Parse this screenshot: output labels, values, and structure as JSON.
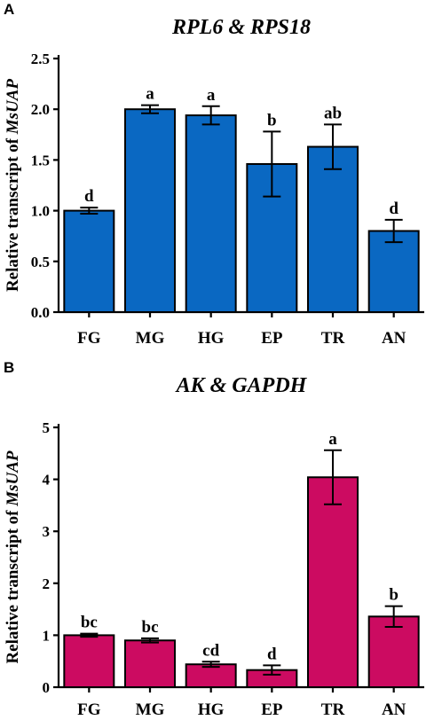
{
  "chart_data": [
    {
      "type": "bar",
      "panel": "A",
      "title": "RPL6 & RPS18",
      "ylabel_prefix": "Relative transcript of ",
      "ylabel_gene": "MsUAP",
      "categories": [
        "FG",
        "MG",
        "HG",
        "EP",
        "TR",
        "AN"
      ],
      "values": [
        1.0,
        2.0,
        1.94,
        1.46,
        1.63,
        0.8
      ],
      "errors": [
        0.03,
        0.04,
        0.09,
        0.32,
        0.22,
        0.11
      ],
      "significance": [
        "d",
        "a",
        "a",
        "b",
        "ab",
        "d"
      ],
      "ylim": [
        0,
        2.5
      ],
      "yticks": [
        "0.0",
        "0.5",
        "1.0",
        "1.5",
        "2.0",
        "2.5"
      ],
      "ytick_values": [
        0,
        0.5,
        1.0,
        1.5,
        2.0,
        2.5
      ],
      "color": "#0a68c2",
      "grid": false,
      "legend": "none"
    },
    {
      "type": "bar",
      "panel": "B",
      "title": "AK & GAPDH",
      "ylabel_prefix": "Relative transcript of ",
      "ylabel_gene": "MsUAP",
      "categories": [
        "FG",
        "MG",
        "HG",
        "EP",
        "TR",
        "AN"
      ],
      "values": [
        1.0,
        0.9,
        0.44,
        0.33,
        4.04,
        1.36
      ],
      "errors": [
        0.03,
        0.04,
        0.05,
        0.09,
        0.52,
        0.2
      ],
      "significance": [
        "bc",
        "bc",
        "cd",
        "d",
        "a",
        "b"
      ],
      "ylim": [
        0,
        5
      ],
      "yticks": [
        "0",
        "1",
        "2",
        "3",
        "4",
        "5"
      ],
      "ytick_values": [
        0,
        1,
        2,
        3,
        4,
        5
      ],
      "color": "#cc0b61",
      "grid": false,
      "legend": "none"
    }
  ]
}
